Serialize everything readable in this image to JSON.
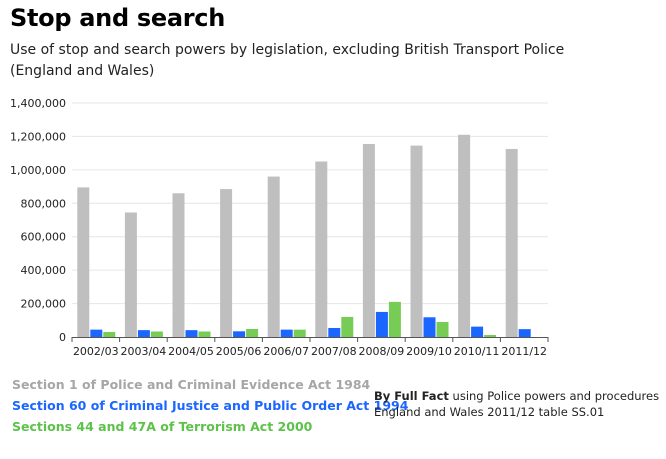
{
  "header": {
    "title": "Stop and search",
    "subtitle": "Use of stop and search powers by legislation, excluding British Transport Police (England and Wales)"
  },
  "chart_data": {
    "type": "bar",
    "title": "Stop and search",
    "subtitle": "Use of stop and search powers by legislation, excluding British Transport Police (England and Wales)",
    "xlabel": "",
    "ylabel": "",
    "ylim": [
      0,
      1400000
    ],
    "yticks": [
      0,
      200000,
      400000,
      600000,
      800000,
      1000000,
      1200000,
      1400000
    ],
    "ytick_labels": [
      "0",
      "200,000",
      "400,000",
      "600,000",
      "800,000",
      "1,000,000",
      "1,200,000",
      "1,400,000"
    ],
    "grid": true,
    "legend_position": "bottom-left",
    "categories": [
      "2002/03",
      "2003/04",
      "2004/05",
      "2005/06",
      "2006/07",
      "2007/08",
      "2008/09",
      "2009/10",
      "2010/11",
      "2011/12"
    ],
    "series": [
      {
        "name": "Section 1 of Police and Criminal Evidence Act 1984",
        "color": "#bfbfbf",
        "values": [
          895000,
          745000,
          860000,
          885000,
          960000,
          1050000,
          1155000,
          1145000,
          1210000,
          1125000
        ]
      },
      {
        "name": "Section 60 of Criminal Justice and Public Order Act 1994",
        "color": "#1a66ff",
        "values": [
          44000,
          41000,
          41000,
          34000,
          44000,
          54000,
          150000,
          118000,
          62000,
          47000
        ]
      },
      {
        "name": "Sections 44 and 47A of Terrorism Act 2000",
        "color": "#77cc55",
        "values": [
          30000,
          33000,
          33000,
          48000,
          44000,
          120000,
          210000,
          90000,
          12000,
          0
        ]
      }
    ]
  },
  "legend": {
    "items": [
      {
        "label": "Section 1 of Police and Criminal Evidence Act 1984",
        "color": "#a6a6a6"
      },
      {
        "label": "Section 60 of Criminal Justice and Public Order Act 1994",
        "color": "#1a66ff"
      },
      {
        "label": "Sections 44 and 47A of Terrorism Act 2000",
        "color": "#5cc24a"
      }
    ]
  },
  "source": {
    "bold": "By Full Fact",
    "text": " using Police powers and procedures England and Wales 2011/12 table SS.01"
  }
}
